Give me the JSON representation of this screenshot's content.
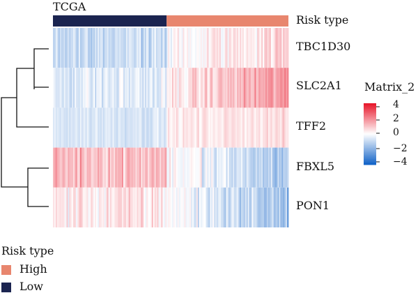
{
  "panel_title": "TCGA",
  "annotation_label": "Risk type",
  "colors": {
    "low": "#1b2450",
    "high": "#e8866e",
    "scale_high": "#e8192c",
    "scale_mid": "#ffffff",
    "scale_low": "#1565c8"
  },
  "legend": {
    "title": "Risk type",
    "items": [
      {
        "label": "High",
        "color": "#e8866e"
      },
      {
        "label": "Low",
        "color": "#1b2450"
      }
    ]
  },
  "colorbar": {
    "title": "Matrix_2",
    "ticks": [
      "4",
      "2",
      "0",
      "−2",
      "−4"
    ]
  },
  "chart_data": {
    "type": "heatmap",
    "title": "TCGA",
    "columns_total": 174,
    "risk_groups": [
      {
        "name": "Low",
        "count": 84
      },
      {
        "name": "High",
        "count": 90
      }
    ],
    "rows": [
      {
        "gene": "TBC1D30",
        "low_mean": -0.9,
        "high_start": -0.1,
        "high_end": 0.8,
        "spread": 0.7
      },
      {
        "gene": "SLC2A1",
        "low_mean": -0.5,
        "high_start": 0.2,
        "high_end": 1.8,
        "spread": 0.7
      },
      {
        "gene": "TFF2",
        "low_mean": -0.6,
        "high_start": 0.3,
        "high_end": 0.6,
        "spread": 0.4
      },
      {
        "gene": "FBXL5",
        "low_mean": 1.2,
        "high_start": 0.2,
        "high_end": -1.5,
        "spread": 0.8
      },
      {
        "gene": "PON1",
        "low_mean": 0.4,
        "high_start": 0.1,
        "high_end": -1.6,
        "spread": 0.8
      }
    ],
    "value_range": [
      -4,
      4
    ]
  }
}
